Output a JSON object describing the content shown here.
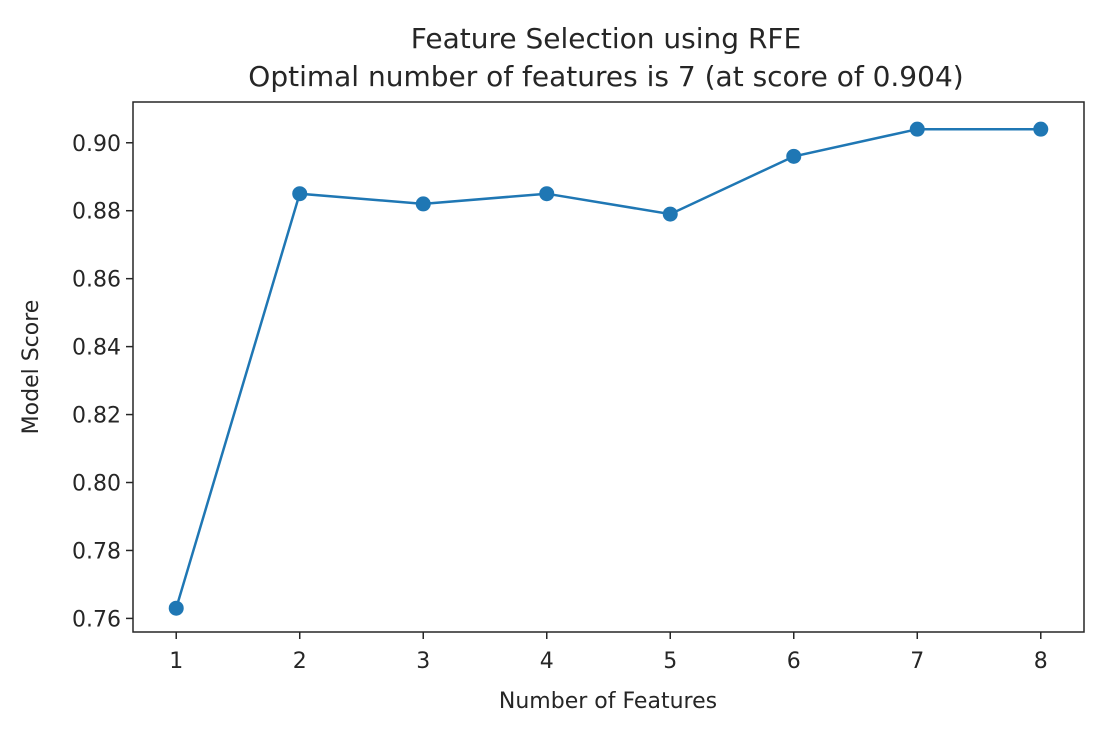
{
  "chart_data": {
    "type": "line",
    "title": "Feature Selection using RFE",
    "subtitle": "Optimal number of features is 7 (at score of 0.904)",
    "xlabel": "Number of Features",
    "ylabel": "Model Score",
    "x": [
      1,
      2,
      3,
      4,
      5,
      6,
      7,
      8
    ],
    "series": [
      {
        "values": [
          0.763,
          0.885,
          0.882,
          0.885,
          0.879,
          0.896,
          0.904,
          0.904
        ],
        "color": "#1f77b4",
        "marker": "circle"
      }
    ],
    "xticks": [
      1,
      2,
      3,
      4,
      5,
      6,
      7,
      8
    ],
    "xtick_labels": [
      "1",
      "2",
      "3",
      "4",
      "5",
      "6",
      "7",
      "8"
    ],
    "yticks": [
      0.76,
      0.78,
      0.8,
      0.82,
      0.84,
      0.86,
      0.88,
      0.9
    ],
    "ytick_labels": [
      "0.76",
      "0.78",
      "0.80",
      "0.82",
      "0.84",
      "0.86",
      "0.88",
      "0.90"
    ],
    "xlim": [
      0.65,
      8.35
    ],
    "ylim": [
      0.756,
      0.912
    ],
    "grid": false,
    "legend": "none"
  }
}
